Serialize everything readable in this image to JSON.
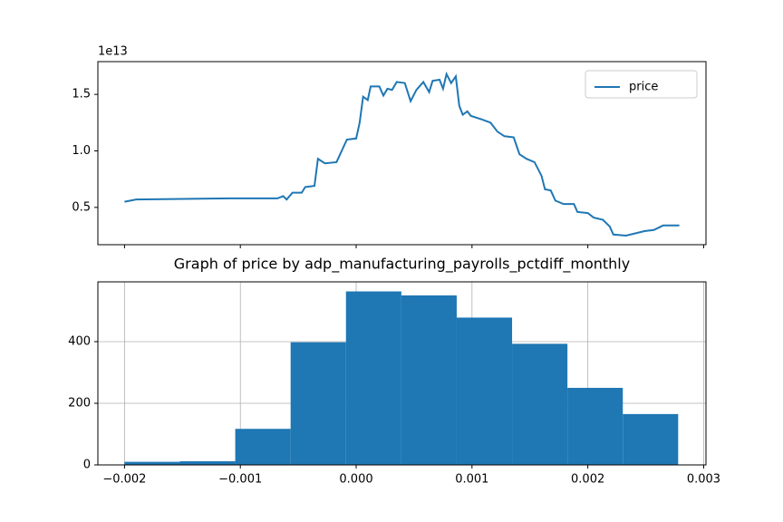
{
  "chart_data": [
    {
      "type": "line",
      "offset_text": "1e13",
      "legend": "upper right",
      "x": [
        -0.002,
        -0.0019,
        -0.0015,
        -0.0011,
        -0.00068,
        -0.00063,
        -0.0006,
        -0.00055,
        -0.00047,
        -0.00044,
        -0.00036,
        -0.00033,
        -0.00027,
        -0.00017,
        -0.000125,
        -8e-05,
        0,
        3e-05,
        6e-05,
        0.0001,
        0.000125,
        0.0002,
        0.000235,
        0.00027,
        0.00031,
        0.00035,
        0.00042,
        0.00047,
        0.00052,
        0.00058,
        0.00063,
        0.00066,
        0.00072,
        0.00075,
        0.00078,
        0.00082,
        0.00086,
        0.00089,
        0.00092,
        0.00096,
        0.00099,
        0.00108,
        0.00116,
        0.00122,
        0.00128,
        0.00136,
        0.00141,
        0.00147,
        0.00154,
        0.0016,
        0.00163,
        0.00168,
        0.00172,
        0.00179,
        0.00188,
        0.00191,
        0.002,
        0.00205,
        0.00213,
        0.00219,
        0.00222,
        0.00233,
        0.00241,
        0.00249,
        0.00257,
        0.00265,
        0.00279
      ],
      "series": [
        {
          "name": "price",
          "color": "#1f77b4",
          "values": [
            0.55,
            0.57,
            0.575,
            0.58,
            0.58,
            0.6,
            0.57,
            0.63,
            0.63,
            0.68,
            0.69,
            0.93,
            0.89,
            0.9,
            1.0,
            1.1,
            1.11,
            1.25,
            1.48,
            1.45,
            1.57,
            1.57,
            1.49,
            1.55,
            1.54,
            1.61,
            1.6,
            1.44,
            1.54,
            1.61,
            1.52,
            1.62,
            1.63,
            1.55,
            1.68,
            1.6,
            1.66,
            1.4,
            1.32,
            1.35,
            1.31,
            1.28,
            1.25,
            1.17,
            1.13,
            1.12,
            0.97,
            0.93,
            0.9,
            0.78,
            0.66,
            0.65,
            0.56,
            0.53,
            0.53,
            0.46,
            0.45,
            0.41,
            0.39,
            0.33,
            0.26,
            0.25,
            0.27,
            0.29,
            0.3,
            0.34,
            0.34
          ]
        }
      ],
      "xlim": [
        -0.00223,
        0.00302
      ],
      "xticks": [
        -0.002,
        -0.001,
        0,
        0.001,
        0.002,
        0.003
      ],
      "ylim": [
        0.17,
        1.79
      ],
      "yticks": [
        0.5,
        {
          "value": 1.0,
          "label": "1.0"
        },
        1.5
      ]
    },
    {
      "type": "histogram",
      "title": "Graph of price by adp_manufacturing_payrolls_pctdiff_monthly",
      "color": "#1f77b4",
      "grid": true,
      "bins": [
        -0.002,
        -0.001522,
        -0.001044,
        -0.000566,
        -8.8e-05,
        0.00039,
        0.000868,
        0.001346,
        0.001824,
        0.002302,
        0.00278
      ],
      "values": [
        10,
        12,
        117,
        398,
        563,
        550,
        478,
        393,
        250,
        165
      ],
      "xlim": [
        -0.00223,
        0.00302
      ],
      "xticks": [
        {
          "value": -0.002,
          "label": "−0.002"
        },
        {
          "value": -0.001,
          "label": "−0.001"
        },
        {
          "value": 0,
          "label": "0.000"
        },
        {
          "value": 0.001,
          "label": "0.001"
        },
        {
          "value": 0.002,
          "label": "0.002"
        },
        {
          "value": 0.003,
          "label": "0.003"
        }
      ],
      "ylim": [
        0,
        594
      ],
      "yticks": [
        0,
        200,
        400
      ]
    }
  ]
}
